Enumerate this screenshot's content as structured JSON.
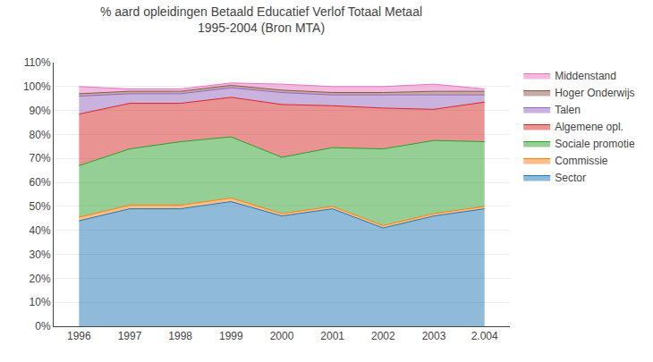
{
  "chart_data": {
    "type": "area",
    "stacked": true,
    "title": "% aard opleidingen Betaald Educatief Verlof Totaal Metaal\n1995-2004 (Bron MTA)",
    "x": [
      1996,
      1997,
      1998,
      1999,
      2000,
      2001,
      2002,
      2003,
      2004
    ],
    "series": [
      {
        "name": "Sector",
        "values": [
          0.44,
          0.49,
          0.49,
          0.52,
          0.46,
          0.49,
          0.41,
          0.46,
          0.49
        ]
      },
      {
        "name": "Commissie",
        "values": [
          0.015,
          0.015,
          0.015,
          0.015,
          0.01,
          0.01,
          0.01,
          0.01,
          0.01
        ]
      },
      {
        "name": "Sociale promotie",
        "values": [
          0.215,
          0.235,
          0.265,
          0.255,
          0.235,
          0.245,
          0.32,
          0.305,
          0.27
        ]
      },
      {
        "name": "Algemene opl.",
        "values": [
          0.215,
          0.19,
          0.16,
          0.165,
          0.22,
          0.175,
          0.17,
          0.13,
          0.165
        ]
      },
      {
        "name": "Talen",
        "values": [
          0.075,
          0.04,
          0.04,
          0.04,
          0.05,
          0.045,
          0.055,
          0.06,
          0.03
        ]
      },
      {
        "name": "Hoger Onderwijs",
        "values": [
          0.01,
          0.01,
          0.01,
          0.01,
          0.01,
          0.01,
          0.01,
          0.015,
          0.015
        ]
      },
      {
        "name": "Middenstand",
        "values": [
          0.03,
          0.01,
          0.01,
          0.01,
          0.025,
          0.025,
          0.025,
          0.03,
          0.01
        ]
      }
    ],
    "xlim": [
      1995.5,
      2004.5
    ],
    "xticks": [
      1996,
      1997,
      1998,
      1999,
      2000,
      2001,
      2002,
      2003,
      {
        "value": 2004,
        "label": "2.004"
      }
    ],
    "ylim": [
      0,
      1.1
    ],
    "yticks": [
      {
        "value": 0.0,
        "label": "0%"
      },
      {
        "value": 0.1,
        "label": "10%"
      },
      {
        "value": 0.2,
        "label": "20%"
      },
      {
        "value": 0.3,
        "label": "30%"
      },
      {
        "value": 0.4,
        "label": "40%"
      },
      {
        "value": 0.5,
        "label": "50%"
      },
      {
        "value": 0.6,
        "label": "60%"
      },
      {
        "value": 0.7,
        "label": "70%"
      },
      {
        "value": 0.8,
        "label": "80%"
      },
      {
        "value": 0.9,
        "label": "90%"
      },
      {
        "value": 1.0,
        "label": "100%"
      },
      {
        "value": 1.1,
        "label": "110%"
      }
    ],
    "grid": true,
    "legend": "right"
  }
}
